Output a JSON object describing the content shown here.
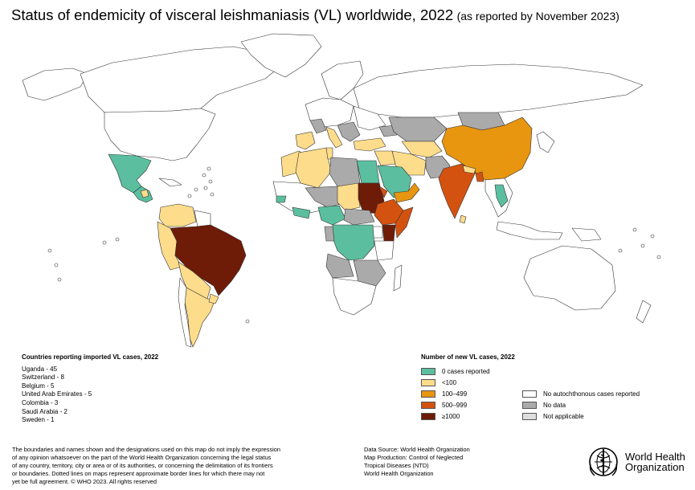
{
  "title": {
    "main": "Status of endemicity of visceral leishmaniasis (VL) worldwide, 2022",
    "sub": "(as reported by November 2023)"
  },
  "imported": {
    "heading": "Countries reporting imported VL cases, 2022",
    "items": [
      "Uganda - 45",
      "Switzerland - 8",
      "Belgium - 5",
      "United Arab Emirates - 5",
      "Colombia - 3",
      "Saudi Arabia - 2",
      "Sweden - 1"
    ]
  },
  "legend": {
    "heading": "Number of new VL cases, 2022",
    "cases": [
      {
        "label": "0 cases reported",
        "color": "#5bbf9f"
      },
      {
        "label": "<100",
        "color": "#fddc8b"
      },
      {
        "label": "100–499",
        "color": "#e8950f"
      },
      {
        "label": "500–999",
        "color": "#d4520f"
      },
      {
        "label": "≥1000",
        "color": "#6e1c07"
      }
    ],
    "other": [
      {
        "label": "No autochthonous cases reported",
        "color": "#ffffff"
      },
      {
        "label": "No data",
        "color": "#aaaaaa"
      },
      {
        "label": "Not applicable",
        "color": "#dddddd"
      }
    ]
  },
  "disclaimer": [
    "The boundaries and names shown and the designations used on this map do not imply the expression",
    "of any opinion whatsoever on the part of the World Health Organization concerning the legal status",
    "of any country, territory, city or area or of its authorities, or concerning the delimitation of its frontiers",
    "or boundaries. Dotted lines on maps represent approximate border lines for which there may not",
    "yet be full agreement. © WHO 2023. All rights reserved"
  ],
  "source": [
    "Data Source: World Health Organization",
    "Map Production: Control of Neglected",
    "Tropical Diseases (NTD)",
    "World Health Organization"
  ],
  "logo": {
    "line1": "World Health",
    "line2": "Organization",
    "icon": "who-emblem-icon"
  },
  "colors": {
    "land": "#ffffff",
    "border": "#333333",
    "zero": "#5bbf9f",
    "lt100": "#fddc8b",
    "c100_499": "#e8950f",
    "c500_999": "#d4520f",
    "gte1000": "#6e1c07",
    "nodata": "#aaaaaa",
    "na": "#dddddd"
  }
}
